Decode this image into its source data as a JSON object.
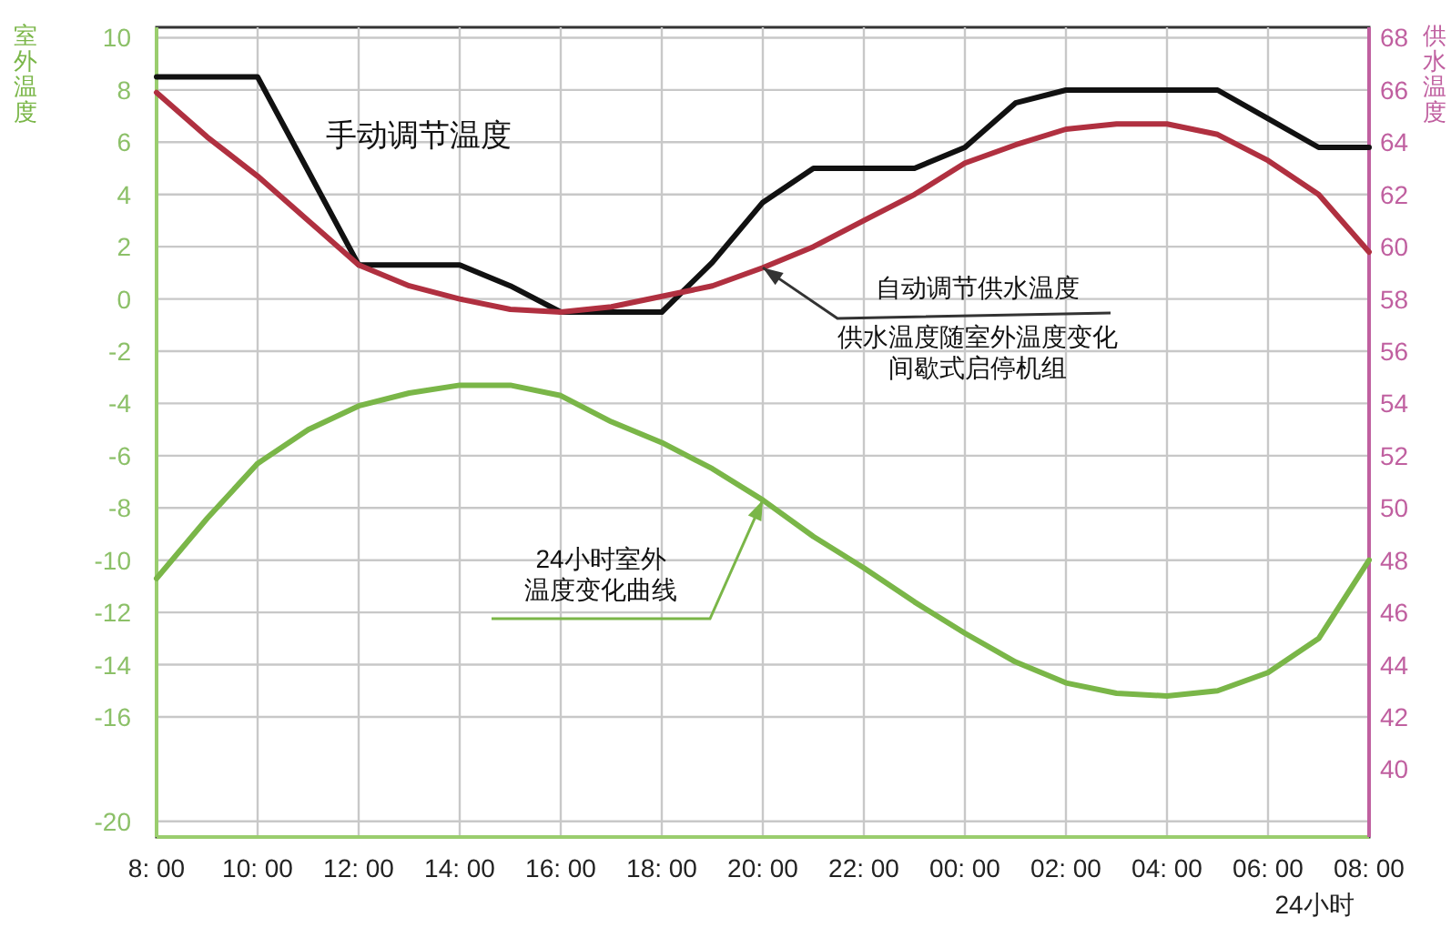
{
  "chart_data": {
    "type": "line",
    "xlabel": "24小时",
    "ylabel": "室外温度",
    "y2label": "供水温度",
    "categories": [
      "8: 00",
      null,
      "10: 00",
      null,
      "12: 00",
      null,
      "14: 00",
      null,
      "16: 00",
      null,
      "18: 00",
      null,
      "20: 00",
      null,
      "22: 00",
      null,
      "00: 00",
      null,
      "02: 00",
      null,
      "04: 00",
      null,
      "06: 00",
      null,
      "08: 00"
    ],
    "ylim": [
      -20.6,
      10.4
    ],
    "yticks": [
      10,
      8,
      6,
      4,
      2,
      0,
      -2,
      -4,
      -6,
      -8,
      -10,
      -12,
      -14,
      -16,
      -20
    ],
    "y2lim": [
      37.4,
      68.4
    ],
    "y2ticks": [
      40,
      42,
      44,
      46,
      48,
      50,
      52,
      54,
      56,
      58,
      60,
      62,
      64,
      66,
      68
    ],
    "grid": true,
    "marker": "none",
    "line_style": "solid",
    "series": [
      {
        "color": "#111111",
        "axis": "y2",
        "values": [
          66.5,
          66.5,
          66.5,
          62.9,
          59.3,
          59.3,
          59.3,
          58.5,
          57.5,
          57.5,
          57.5,
          59.4,
          61.7,
          63.0,
          63.0,
          63.0,
          63.8,
          65.5,
          66.0,
          66.0,
          66.0,
          66.0,
          64.9,
          63.8,
          63.8
        ]
      },
      {
        "color": "#b03040",
        "axis": "y2",
        "values": [
          65.9,
          64.2,
          62.7,
          61.0,
          59.3,
          58.5,
          58.0,
          57.6,
          57.5,
          57.7,
          58.1,
          58.5,
          59.2,
          60.0,
          61.0,
          62.0,
          63.2,
          63.9,
          64.5,
          64.7,
          64.7,
          64.3,
          63.3,
          62.0,
          59.8
        ]
      },
      {
        "color": "#7ab648",
        "axis": "y",
        "values": [
          -10.7,
          -8.4,
          -6.3,
          -5.0,
          -4.1,
          -3.6,
          -3.3,
          -3.3,
          -3.7,
          -4.7,
          -5.5,
          -6.5,
          -7.7,
          -9.1,
          -10.3,
          -11.6,
          -12.8,
          -13.9,
          -14.7,
          -15.1,
          -15.2,
          -15.0,
          -14.3,
          -13.0,
          -10.0
        ]
      }
    ],
    "annotations": [
      "手动调节温度",
      "自动调节供水温度",
      {
        "text": "供水温度随室外温度变化间歇式启停机组",
        "x": "20: 00",
        "y": 1.2
      },
      {
        "text": "24小时室外温度变化曲线",
        "x": "20: 00",
        "y": -7.7
      }
    ]
  }
}
